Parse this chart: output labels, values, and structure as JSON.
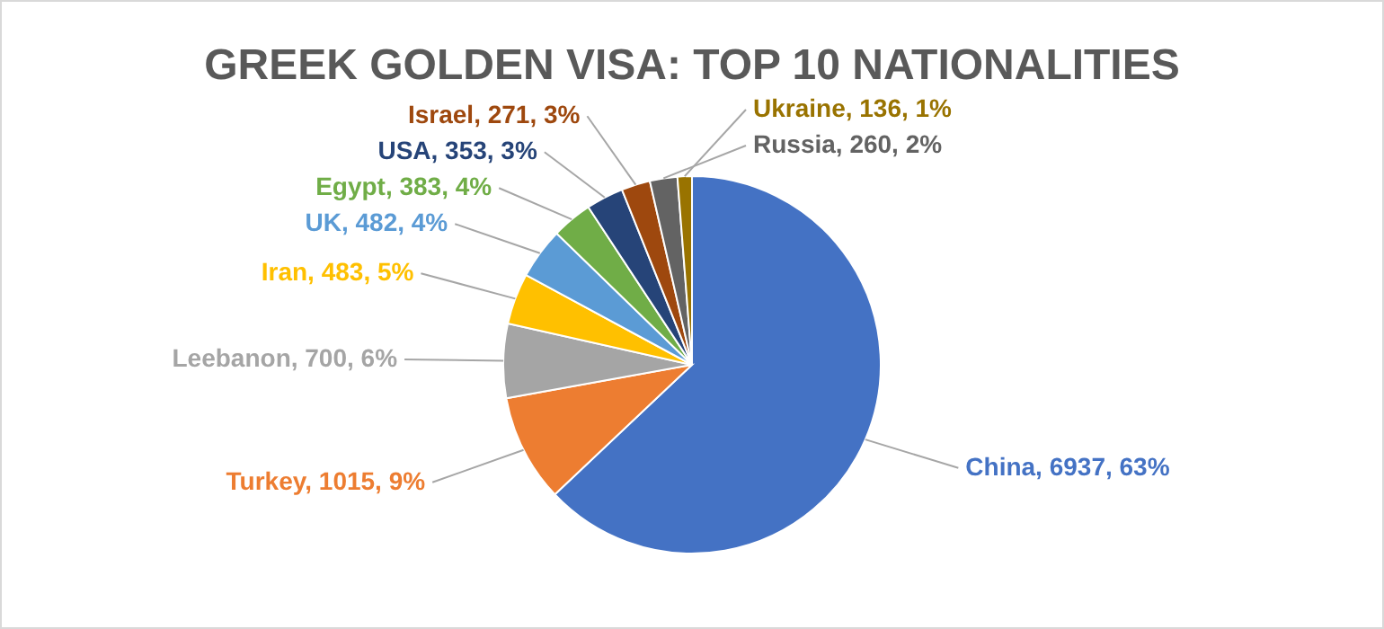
{
  "chart_data": {
    "type": "pie",
    "title": "GREEK GOLDEN VISA: TOP 10 NATIONALITIES",
    "categories": [
      "China",
      "Turkey",
      "Leebanon",
      "Iran",
      "UK",
      "Egypt",
      "USA",
      "Israel",
      "Russia",
      "Ukraine"
    ],
    "values": [
      6937,
      1015,
      700,
      483,
      482,
      383,
      353,
      271,
      260,
      136
    ],
    "value_labels": [
      "6937, 63%",
      "1015, 9%",
      "700, 6%",
      "483, 5%",
      "482, 4%",
      "383, 4%",
      "353, 3%",
      "271, 3%",
      "260, 2%",
      "136, 1%"
    ],
    "colors": [
      "#4472c4",
      "#ed7d31",
      "#a5a5a5",
      "#ffc000",
      "#5b9bd5",
      "#70ad47",
      "#264478",
      "#9e480e",
      "#636363",
      "#997300"
    ]
  }
}
